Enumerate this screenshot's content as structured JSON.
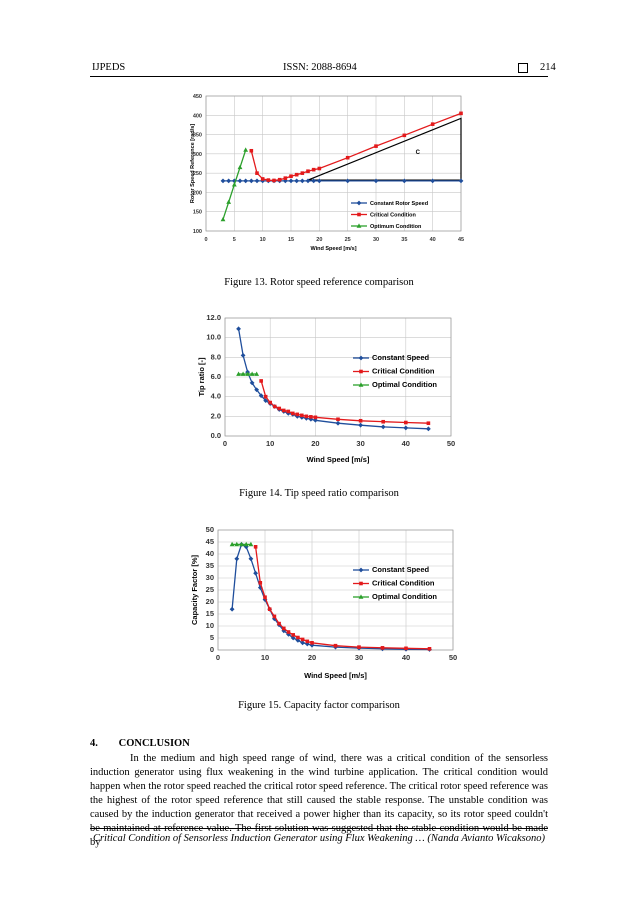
{
  "header": {
    "journal": "IJPEDS",
    "issn": "ISSN: 2088-8694",
    "page": "214"
  },
  "figures": [
    {
      "caption": "Figure 13. Rotor speed reference comparison"
    },
    {
      "caption": "Figure 14. Tip speed ratio comparison"
    },
    {
      "caption": "Figure 15. Capacity factor comparison"
    }
  ],
  "section": {
    "number": "4.",
    "title": "CONCLUSION",
    "text": "In the medium and high speed range of wind, there was a critical condition of the sensorless induction generator using flux weakening in the wind turbine application. The critical condition would happen when the rotor speed reached the critical rotor speed reference. The critical rotor speed reference was the highest of the rotor speed reference that still caused the stable response. The unstable condition was caused by the induction generator that received a power higher than its capacity, so its rotor speed couldn't be maintained at reference value. The first solution was suggested that the stable condition would be made by"
  },
  "footer": "Critical Condition of Sensorless Induction Generator using Flux Weakening … (Nanda Avianto Wicaksono)",
  "chart_data": [
    {
      "type": "line",
      "xlabel": "Wind Speed [m/s]",
      "ylabel": "Rotor Speed Reference [rad/s]",
      "xlim": [
        0,
        45
      ],
      "ylim": [
        100,
        450
      ],
      "xticks": [
        "0",
        "5",
        "10",
        "15",
        "20",
        "25",
        "30",
        "35",
        "40",
        "45"
      ],
      "yticks": [
        "100",
        "150",
        "200",
        "250",
        "300",
        "350",
        "400",
        "450"
      ],
      "grid": true,
      "legend": "bottom-right",
      "annotations": [
        "C"
      ],
      "series": [
        {
          "name": "Constant Rotor Speed",
          "color": "#1f4e9c",
          "marker": "diamond",
          "x": [
            3,
            4,
            5,
            6,
            7,
            8,
            9,
            10,
            11,
            12,
            13,
            14,
            15,
            16,
            17,
            18,
            19,
            20,
            25,
            30,
            35,
            40,
            45
          ],
          "y": [
            230,
            230,
            230,
            230,
            230,
            230,
            230,
            230,
            230,
            230,
            230,
            230,
            230,
            230,
            230,
            230,
            230,
            230,
            230,
            230,
            230,
            230,
            230
          ]
        },
        {
          "name": "Critical Condition",
          "color": "#e31a1c",
          "marker": "square",
          "x": [
            8,
            9,
            10,
            11,
            12,
            13,
            14,
            15,
            16,
            17,
            18,
            19,
            20,
            25,
            30,
            35,
            40,
            45
          ],
          "y": [
            308,
            250,
            235,
            232,
            231,
            233,
            237,
            242,
            246,
            250,
            255,
            259,
            262,
            290,
            320,
            348,
            377,
            405
          ]
        },
        {
          "name": "Optimum Condition",
          "color": "#2ca02c",
          "marker": "triangle",
          "x": [
            3,
            4,
            5,
            6,
            7
          ],
          "y": [
            130,
            175,
            220,
            265,
            310
          ]
        }
      ]
    },
    {
      "type": "line",
      "xlabel": "Wind Speed [m/s]",
      "ylabel": "Tip ratio [-]",
      "xlim": [
        0,
        50
      ],
      "ylim": [
        0,
        12
      ],
      "xticks": [
        "0",
        "10",
        "20",
        "30",
        "40",
        "50"
      ],
      "yticks": [
        "0.0",
        "2.0",
        "4.0",
        "6.0",
        "8.0",
        "10.0",
        "12.0"
      ],
      "grid": true,
      "legend": "right",
      "series": [
        {
          "name": "Constant Speed",
          "color": "#1f4e9c",
          "marker": "diamond",
          "x": [
            3,
            4,
            5,
            6,
            7,
            8,
            9,
            10,
            11,
            12,
            13,
            14,
            15,
            16,
            17,
            18,
            19,
            20,
            25,
            30,
            35,
            40,
            45
          ],
          "y": [
            10.9,
            8.2,
            6.5,
            5.4,
            4.7,
            4.1,
            3.6,
            3.3,
            3.0,
            2.7,
            2.5,
            2.3,
            2.2,
            2.0,
            1.9,
            1.8,
            1.7,
            1.6,
            1.3,
            1.1,
            0.93,
            0.82,
            0.73
          ]
        },
        {
          "name": "Critical Condition",
          "color": "#e31a1c",
          "marker": "square",
          "x": [
            8,
            9,
            10,
            11,
            12,
            13,
            14,
            15,
            16,
            17,
            18,
            19,
            20,
            25,
            30,
            35,
            40,
            45
          ],
          "y": [
            5.6,
            4.0,
            3.4,
            3.0,
            2.8,
            2.6,
            2.5,
            2.3,
            2.2,
            2.1,
            2.0,
            1.95,
            1.9,
            1.7,
            1.55,
            1.45,
            1.37,
            1.3
          ]
        },
        {
          "name": "Optimal Condition",
          "color": "#2ca02c",
          "marker": "triangle",
          "x": [
            3,
            4,
            5,
            6,
            7
          ],
          "y": [
            6.3,
            6.3,
            6.3,
            6.3,
            6.3
          ]
        }
      ]
    },
    {
      "type": "line",
      "xlabel": "Wind Speed [m/s]",
      "ylabel": "Capacity Factor [%]",
      "xlim": [
        0,
        50
      ],
      "ylim": [
        0,
        50
      ],
      "xticks": [
        "0",
        "10",
        "20",
        "30",
        "40",
        "50"
      ],
      "yticks": [
        "0",
        "5",
        "10",
        "15",
        "20",
        "25",
        "30",
        "35",
        "40",
        "45",
        "50"
      ],
      "grid": true,
      "legend": "right",
      "series": [
        {
          "name": "Constant Speed",
          "color": "#1f4e9c",
          "marker": "diamond",
          "x": [
            3,
            4,
            5,
            6,
            7,
            8,
            9,
            10,
            11,
            12,
            13,
            14,
            15,
            16,
            17,
            18,
            19,
            20,
            25,
            30,
            35,
            40,
            45
          ],
          "y": [
            17,
            38,
            44,
            43,
            38,
            32,
            26,
            21,
            17,
            13,
            10.5,
            8,
            6.5,
            5,
            4,
            3,
            2.5,
            2,
            1.2,
            0.8,
            0.5,
            0.3,
            0.2
          ]
        },
        {
          "name": "Critical Condition",
          "color": "#e31a1c",
          "marker": "square",
          "x": [
            8,
            9,
            10,
            11,
            12,
            13,
            14,
            15,
            16,
            17,
            18,
            19,
            20,
            25,
            30,
            35,
            40,
            45
          ],
          "y": [
            43,
            28,
            22,
            17,
            14,
            11,
            9,
            7.5,
            6.3,
            5.2,
            4.4,
            3.6,
            3,
            1.8,
            1.2,
            0.9,
            0.7,
            0.5
          ]
        },
        {
          "name": "Optimal Condition",
          "color": "#2ca02c",
          "marker": "triangle",
          "x": [
            3,
            4,
            5,
            6,
            7
          ],
          "y": [
            44,
            44,
            44,
            44,
            44
          ]
        }
      ]
    }
  ]
}
